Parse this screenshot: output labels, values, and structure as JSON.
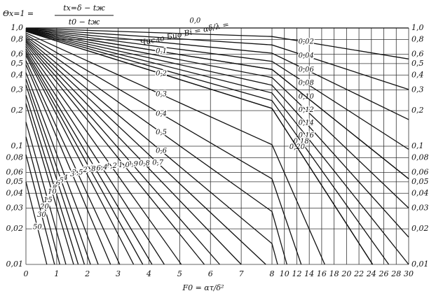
{
  "chart_data": {
    "type": "line",
    "ylabel": "Θx=1 =",
    "ylabel_num": "tx=δ − tж",
    "ylabel_den": "t0 − tж",
    "xlabel": "F0 = ατ/δ²",
    "annotation": "Число Био Bi = αδ/λ =",
    "log_y": true,
    "grid": true,
    "color": "#111111",
    "xlim": [
      0,
      30
    ],
    "xticks": [
      0,
      1,
      2,
      3,
      4,
      5,
      6,
      7,
      8,
      10,
      12,
      14,
      16,
      18,
      20,
      22,
      24,
      26,
      28,
      30
    ],
    "ylim": [
      0.01,
      1.0
    ],
    "yticks": [
      {
        "value": 1.0,
        "label": "1,0"
      },
      {
        "value": 0.8,
        "label": "0,8"
      },
      {
        "value": 0.6,
        "label": "0,6"
      },
      {
        "value": 0.5,
        "label": "0,5"
      },
      {
        "value": 0.4,
        "label": "0,4"
      },
      {
        "value": 0.3,
        "label": "0,3"
      },
      {
        "value": 0.2,
        "label": "0,2"
      },
      {
        "value": 0.1,
        "label": "0,1"
      },
      {
        "value": 0.08,
        "label": "0,08"
      },
      {
        "value": 0.06,
        "label": "0,06"
      },
      {
        "value": 0.05,
        "label": "0,05"
      },
      {
        "value": 0.04,
        "label": "0,04"
      },
      {
        "value": 0.03,
        "label": "0,03"
      },
      {
        "value": 0.02,
        "label": "0,02"
      },
      {
        "value": 0.01,
        "label": "0,01"
      }
    ],
    "series": [
      {
        "name": "0,0",
        "x": [
          0,
          30
        ],
        "values": [
          1.0,
          1.0
        ]
      },
      {
        "name": "0,02",
        "x": [
          0,
          8,
          30
        ],
        "values": [
          0.993,
          0.847,
          0.547
        ]
      },
      {
        "name": "0,04",
        "x": [
          0,
          8,
          30
        ],
        "values": [
          0.987,
          0.719,
          0.302
        ]
      },
      {
        "name": "0,06",
        "x": [
          0,
          8,
          30
        ],
        "values": [
          0.98,
          0.612,
          0.168
        ]
      },
      {
        "name": "0,08",
        "x": [
          0,
          8,
          30
        ],
        "values": [
          0.974,
          0.522,
          0.094
        ]
      },
      {
        "name": "0,10",
        "x": [
          0,
          8,
          30
        ],
        "values": [
          0.967,
          0.446,
          0.053
        ]
      },
      {
        "name": "0,12",
        "x": [
          0,
          8,
          30
        ],
        "values": [
          0.961,
          0.381,
          0.03
        ]
      },
      {
        "name": "0,14",
        "x": [
          0,
          8,
          30
        ],
        "values": [
          0.955,
          0.328,
          0.017
        ]
      },
      {
        "name": "0,16",
        "x": [
          0,
          8,
          30
        ],
        "values": [
          0.949,
          0.282,
          0.01
        ]
      },
      {
        "name": "0,18",
        "x": [
          0,
          8,
          26.8
        ],
        "values": [
          0.943,
          0.243,
          0.01
        ]
      },
      {
        "name": "0,20",
        "x": [
          0,
          8,
          24.2
        ],
        "values": [
          0.936,
          0.209,
          0.01
        ]
      },
      {
        "name": "0,1",
        "x": [
          0,
          8,
          30
        ],
        "values": [
          0.967,
          0.446,
          0.053
        ]
      },
      {
        "name": "0,2",
        "x": [
          0,
          8,
          24.2
        ],
        "values": [
          0.936,
          0.209,
          0.01
        ]
      },
      {
        "name": "0,3",
        "x": [
          0,
          8,
          16.5
        ],
        "values": [
          0.906,
          0.103,
          0.01
        ]
      },
      {
        "name": "0,4",
        "x": [
          0,
          8,
          12.7
        ],
        "values": [
          0.877,
          0.053,
          0.01
        ]
      },
      {
        "name": "0,5",
        "x": [
          0,
          8,
          10.4
        ],
        "values": [
          0.85,
          0.028,
          0.01
        ]
      },
      {
        "name": "0,6",
        "x": [
          0,
          8,
          8.9
        ],
        "values": [
          0.825,
          0.015,
          0.01
        ]
      },
      {
        "name": "0,7",
        "x": [
          0,
          7.8
        ],
        "values": [
          0.801,
          0.01
        ]
      },
      {
        "name": "0,8",
        "x": [
          0,
          7.0
        ],
        "values": [
          0.779,
          0.01
        ]
      },
      {
        "name": "0,9",
        "x": [
          0,
          6.3
        ],
        "values": [
          0.758,
          0.01
        ]
      },
      {
        "name": "1,0",
        "x": [
          0,
          5.8
        ],
        "values": [
          0.73,
          0.01
        ]
      },
      {
        "name": "1,2",
        "x": [
          0,
          5.05
        ],
        "values": [
          0.7,
          0.01
        ]
      },
      {
        "name": "1,4",
        "x": [
          0,
          4.5
        ],
        "values": [
          0.665,
          0.01
        ]
      },
      {
        "name": "1,6",
        "x": [
          0,
          4.1
        ],
        "values": [
          0.635,
          0.01
        ]
      },
      {
        "name": "1,8",
        "x": [
          0,
          3.8
        ],
        "values": [
          0.61,
          0.01
        ]
      },
      {
        "name": "2",
        "x": [
          0,
          3.5
        ],
        "values": [
          0.585,
          0.01
        ]
      },
      {
        "name": "2,5",
        "x": [
          0,
          3.05
        ],
        "values": [
          0.53,
          0.01
        ]
      },
      {
        "name": "3",
        "x": [
          0,
          2.75
        ],
        "values": [
          0.49,
          0.01
        ]
      },
      {
        "name": "4",
        "x": [
          0,
          2.35
        ],
        "values": [
          0.42,
          0.01
        ]
      },
      {
        "name": "5",
        "x": [
          0,
          2.1
        ],
        "values": [
          0.37,
          0.01
        ]
      },
      {
        "name": "6",
        "x": [
          0,
          1.9
        ],
        "values": [
          0.33,
          0.01
        ]
      },
      {
        "name": "8",
        "x": [
          0,
          1.7
        ],
        "values": [
          0.27,
          0.01
        ]
      },
      {
        "name": "10",
        "x": [
          0,
          1.55
        ],
        "values": [
          0.23,
          0.01
        ]
      },
      {
        "name": "15",
        "x": [
          0,
          1.3
        ],
        "values": [
          0.16,
          0.01
        ]
      },
      {
        "name": "20",
        "x": [
          0,
          1.1
        ],
        "values": [
          0.12,
          0.01
        ]
      },
      {
        "name": "30",
        "x": [
          0,
          0.93
        ],
        "values": [
          0.085,
          0.01
        ]
      },
      {
        "name": "50",
        "x": [
          0,
          0.68
        ],
        "values": [
          0.05,
          0.01
        ]
      }
    ]
  }
}
